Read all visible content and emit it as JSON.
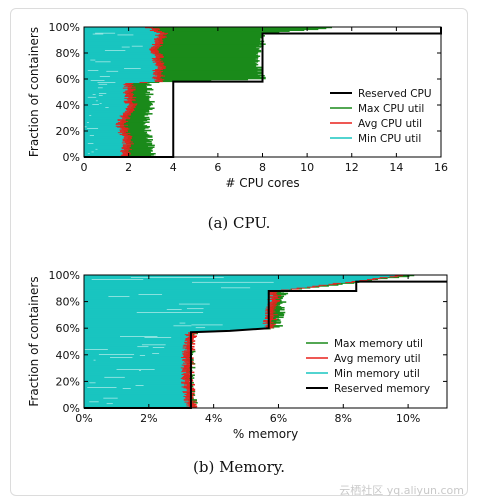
{
  "figures": [
    {
      "caption": "(a)  CPU."
    },
    {
      "caption": "(b)  Memory."
    }
  ],
  "watermark": "云栖社区 yq.aliyun.com",
  "chart_data": [
    {
      "type": "line",
      "title": "",
      "xlabel": "# CPU cores",
      "ylabel": "Fraction of containers",
      "xlim": [
        0,
        16
      ],
      "ylim": [
        0,
        100
      ],
      "xticks": [
        "0",
        "2",
        "4",
        "6",
        "8",
        "10",
        "12",
        "14",
        "16"
      ],
      "yticks": [
        "0%",
        "20%",
        "40%",
        "60%",
        "80%",
        "100%"
      ],
      "legend_position": "center-right",
      "colors": {
        "reserved": "#000000",
        "max": "#1a8a1a",
        "avg": "#e8201c",
        "min": "#19c5c0"
      },
      "series": [
        {
          "name": "Reserved CPU",
          "x": [
            0,
            4,
            4,
            8,
            8,
            16,
            16
          ],
          "y": [
            0,
            0,
            58,
            58,
            95,
            95,
            100
          ]
        },
        {
          "name": "Max CPU util",
          "x": [
            3.2,
            3.0,
            2.8,
            3.0,
            2.9,
            3.8,
            8.0,
            7.8,
            8.2,
            11.5
          ],
          "y": [
            0,
            10,
            25,
            40,
            57,
            58,
            60,
            80,
            95,
            100
          ]
        },
        {
          "name": "Avg CPU util",
          "x": [
            1.8,
            2.0,
            1.7,
            2.1,
            2.0,
            3.3,
            3.4,
            3.2,
            3.5,
            3.0
          ],
          "y": [
            0,
            10,
            25,
            40,
            57,
            58,
            70,
            85,
            95,
            100
          ]
        },
        {
          "name": "Min CPU util",
          "x": [
            0.2,
            1.0,
            1.2,
            1.3,
            1.4,
            3.0,
            2.9,
            3.1,
            3.0,
            2.5
          ],
          "y": [
            0,
            10,
            25,
            40,
            57,
            58,
            70,
            85,
            95,
            100
          ]
        }
      ]
    },
    {
      "type": "line",
      "title": "",
      "xlabel": "% memory",
      "ylabel": "Fraction of containers",
      "xlim": [
        0,
        11.2
      ],
      "ylim": [
        0,
        100
      ],
      "xticks": [
        "0%",
        "2%",
        "4%",
        "6%",
        "8%",
        "10%"
      ],
      "xtick_values": [
        0,
        2,
        4,
        6,
        8,
        10
      ],
      "yticks": [
        "0%",
        "20%",
        "40%",
        "60%",
        "80%",
        "100%"
      ],
      "legend_position": "center-right",
      "colors": {
        "reserved": "#000000",
        "max": "#1a8a1a",
        "avg": "#e8201c",
        "min": "#19c5c0"
      },
      "series": [
        {
          "name": "Max memory util",
          "x": [
            3.4,
            3.3,
            3.3,
            3.4,
            6.0,
            6.1,
            6.2,
            10.3
          ],
          "y": [
            0,
            20,
            40,
            57,
            60,
            75,
            88,
            100
          ]
        },
        {
          "name": "Avg memory util",
          "x": [
            3.3,
            3.2,
            3.2,
            3.3,
            5.7,
            5.8,
            5.9,
            9.9
          ],
          "y": [
            0,
            20,
            40,
            57,
            60,
            75,
            88,
            100
          ]
        },
        {
          "name": "Min memory util",
          "x": [
            1.2,
            3.0,
            3.1,
            3.2,
            5.5,
            5.6,
            5.7,
            9.4
          ],
          "y": [
            0,
            20,
            40,
            57,
            60,
            75,
            88,
            100
          ]
        },
        {
          "name": "Reserved memory",
          "x": [
            0,
            3.3,
            3.3,
            4.5,
            5.7,
            5.7,
            8.4,
            8.4,
            11.2
          ],
          "y": [
            0,
            0,
            57,
            58,
            60,
            88,
            88,
            95,
            95
          ]
        }
      ]
    }
  ]
}
